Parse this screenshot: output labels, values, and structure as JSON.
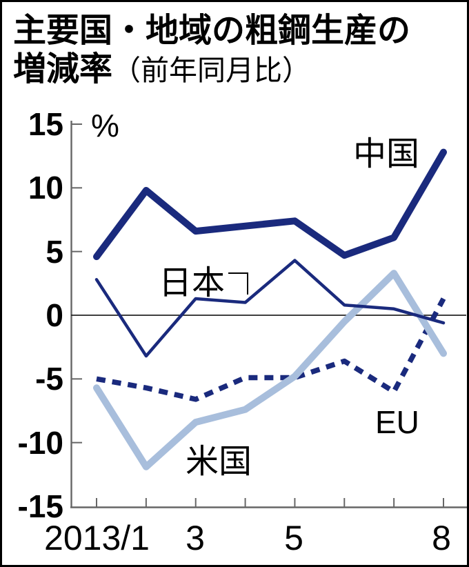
{
  "figure": {
    "title_line1": "主要国・地域の粗鋼生産の",
    "title_line2_main": "増減率",
    "title_line2_note": "（前年同月比）"
  },
  "labels": {
    "china": "中国",
    "japan": "日本",
    "us": "米国",
    "eu": "EU",
    "percent": "%"
  },
  "colors": {
    "navy": "#1a2a7d",
    "light_blue": "#a8bedc",
    "axis": "#666666",
    "zero_line": "#222222",
    "text": "#000000",
    "background": "#ffffff"
  },
  "chart_data": {
    "type": "line",
    "title": "主要国・地域の粗鋼生産の増減率（前年同月比）",
    "subtitle_note": "前年同月比",
    "unit": "%",
    "x_axis": {
      "months": [
        1,
        2,
        3,
        4,
        5,
        6,
        7,
        8
      ],
      "tick_labels": [
        {
          "month": 1,
          "label": "2013/1"
        },
        {
          "month": 3,
          "label": "3"
        },
        {
          "month": 5,
          "label": "5"
        },
        {
          "month": 8,
          "label": "8"
        }
      ]
    },
    "y_axis": {
      "min": -15,
      "max": 15,
      "step": 5,
      "tick_labels": [
        "15",
        "10",
        "5",
        "0",
        "-5",
        "-10",
        "-15"
      ],
      "unit": "%"
    },
    "grid": "zero-line-only",
    "legend_position": "inline-labels",
    "series": [
      {
        "key": "china",
        "name": "中国",
        "color": "#1a2a7d",
        "style": "solid-thick",
        "values": [
          4.6,
          9.8,
          6.6,
          7.0,
          7.4,
          4.7,
          6.1,
          12.8
        ]
      },
      {
        "key": "japan",
        "name": "日本",
        "color": "#1a2a7d",
        "style": "solid-thin",
        "values": [
          2.8,
          -3.2,
          1.3,
          1.0,
          4.3,
          0.8,
          0.5,
          -0.6
        ]
      },
      {
        "key": "us",
        "name": "米国",
        "color": "#a8bedc",
        "style": "solid-thick",
        "values": [
          -5.7,
          -11.9,
          -8.4,
          -7.4,
          -4.8,
          -0.5,
          3.3,
          -3.0
        ]
      },
      {
        "key": "eu",
        "name": "EU",
        "color": "#1a2a7d",
        "style": "dashed",
        "values": [
          -5.0,
          -5.7,
          -6.6,
          -4.9,
          -4.9,
          -3.6,
          -6.0,
          1.3
        ]
      }
    ]
  }
}
